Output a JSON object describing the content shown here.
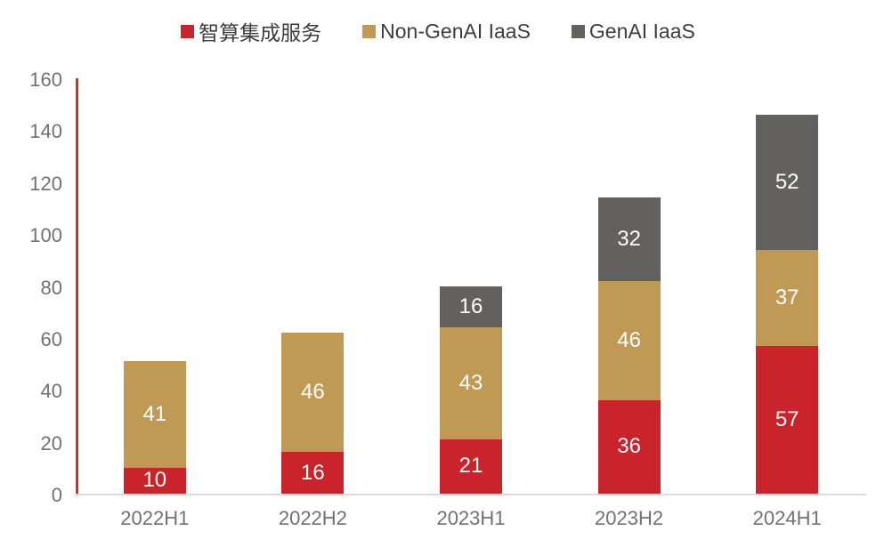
{
  "chart_data": {
    "type": "bar",
    "stacked": true,
    "title": "",
    "xlabel": "",
    "ylabel": "",
    "categories": [
      "2022H1",
      "2022H2",
      "2023H1",
      "2023H2",
      "2024H1"
    ],
    "series": [
      {
        "name": "智算集成服务",
        "color": "#c9232b",
        "values": [
          10,
          16,
          21,
          36,
          57
        ]
      },
      {
        "name": "Non-GenAI IaaS",
        "color": "#c09a55",
        "values": [
          41,
          46,
          43,
          46,
          37
        ]
      },
      {
        "name": "GenAI IaaS",
        "color": "#636060",
        "values": [
          null,
          null,
          16,
          32,
          52
        ]
      }
    ],
    "totals": [
      51,
      62,
      80,
      114,
      146
    ],
    "ylim": [
      0,
      160
    ],
    "yticks": [
      0,
      20,
      40,
      60,
      80,
      100,
      120,
      140,
      160
    ],
    "grid": false,
    "legend_position": "top",
    "data_label_color": "#ffffff",
    "axis_text_color": "#717171",
    "legend_text_color": "#3d3d3d",
    "y_axis_line_color": "#dd2a20",
    "x_axis_line_color": "#dcdcdc",
    "background_color": "#ffffff"
  }
}
